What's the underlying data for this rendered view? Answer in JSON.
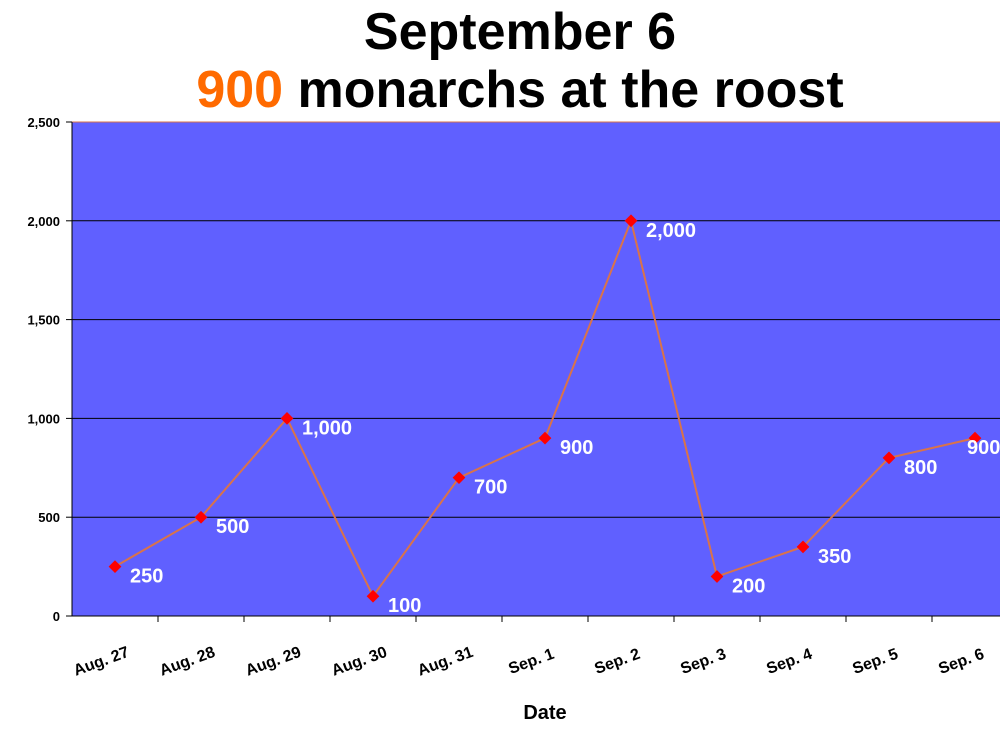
{
  "chart_data": {
    "type": "line",
    "title_line1": "September 6",
    "title_line2_highlight": "900",
    "title_line2_rest": " monarchs at the roost",
    "xlabel": "Date",
    "ylabel": "",
    "categories": [
      "Aug. 27",
      "Aug. 28",
      "Aug. 29",
      "Aug. 30",
      "Aug. 31",
      "Sep. 1",
      "Sep. 2",
      "Sep. 3",
      "Sep. 4",
      "Sep. 5",
      "Sep. 6"
    ],
    "values": [
      250,
      500,
      1000,
      100,
      700,
      900,
      2000,
      200,
      350,
      800,
      900
    ],
    "data_labels": [
      "250",
      "500",
      "1,000",
      "100",
      "700",
      "900",
      "2,000",
      "200",
      "350",
      "800",
      "900"
    ],
    "ylim": [
      0,
      2500
    ],
    "yticks": [
      0,
      500,
      1000,
      1500,
      2000,
      2500
    ],
    "ytick_labels": [
      "0",
      "500",
      "1,000",
      "1,500",
      "2,000",
      "2,500"
    ],
    "grid": true,
    "colors": {
      "plot_bg": "#6060ff",
      "line": "#d9734a",
      "marker": "#ff0000",
      "highlight": "#ff6a00",
      "label": "#ffffff"
    }
  }
}
